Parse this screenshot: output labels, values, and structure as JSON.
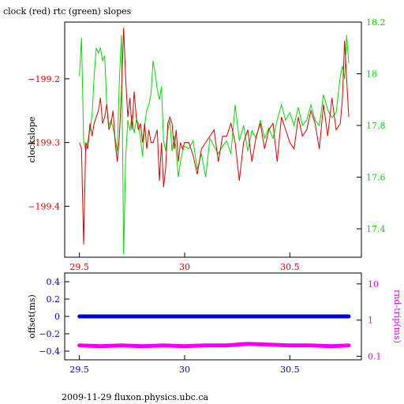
{
  "page": {
    "footer": "2009-11-29 fluxon.physics.ubc.ca"
  },
  "colors": {
    "clock": "#dd0000",
    "rtc": "#00dd00",
    "offset": "#0000cc",
    "rndtrip": "#ee00ee",
    "axis_black": "#000000"
  },
  "chart_data": [
    {
      "type": "line",
      "title": "clock (red) rtc (green) slopes",
      "xlabel": "",
      "ylabel_left": "clockslope",
      "ylabel_right": "",
      "xlim": [
        29.43,
        30.84
      ],
      "ylim_left": [
        -199.48,
        -199.111
      ],
      "ylim_right": [
        17.29,
        18.2
      ],
      "x_ticks": [
        29.5,
        30,
        30.5
      ],
      "x_tick_labels": [
        "29.5",
        "30",
        "30.5"
      ],
      "y_left_ticks": [
        -199.2,
        -199.3,
        -199.4
      ],
      "y_left_tick_labels": [
        "-199.2",
        "-199.3",
        "-199.4"
      ],
      "y_right_ticks": [
        18.2,
        18,
        17.8,
        17.6,
        17.4
      ],
      "y_right_tick_labels": [
        "18.2",
        "18",
        "17.8",
        "17.6",
        "17.4"
      ],
      "grid": false,
      "series": [
        {
          "axis": "left",
          "color": "#dd0000",
          "x": [
            29.5,
            29.51,
            29.52,
            29.53,
            29.54,
            29.55,
            29.56,
            29.57,
            29.58,
            29.59,
            29.6,
            29.61,
            29.62,
            29.63,
            29.64,
            29.65,
            29.66,
            29.67,
            29.68,
            29.69,
            29.7,
            29.71,
            29.72,
            29.73,
            29.74,
            29.75,
            29.76,
            29.77,
            29.78,
            29.79,
            29.8,
            29.81,
            29.82,
            29.83,
            29.84,
            29.85,
            29.86,
            29.87,
            29.88,
            29.89,
            29.9,
            29.91,
            29.92,
            29.93,
            29.94,
            29.95,
            29.96,
            29.97,
            29.98,
            29.99,
            30.0,
            30.02,
            30.04,
            30.06,
            30.08,
            30.1,
            30.12,
            30.14,
            30.16,
            30.18,
            30.2,
            30.22,
            30.24,
            30.26,
            30.28,
            30.3,
            30.32,
            30.34,
            30.36,
            30.38,
            30.4,
            30.42,
            30.44,
            30.46,
            30.48,
            30.5,
            30.52,
            30.54,
            30.56,
            30.58,
            30.6,
            30.62,
            30.64,
            30.66,
            30.68,
            30.7,
            30.72,
            30.74,
            30.75,
            30.76,
            30.77,
            30.78
          ],
          "y": [
            -199.3,
            -199.31,
            -199.46,
            -199.3,
            -199.31,
            -199.27,
            -199.29,
            -199.27,
            -199.26,
            -199.25,
            -199.23,
            -199.27,
            -199.26,
            -199.24,
            -199.28,
            -199.27,
            -199.25,
            -199.3,
            -199.33,
            -199.29,
            -199.22,
            -199.12,
            -199.2,
            -199.26,
            -199.23,
            -199.28,
            -199.22,
            -199.26,
            -199.28,
            -199.27,
            -199.3,
            -199.27,
            -199.31,
            -199.28,
            -199.3,
            -199.3,
            -199.29,
            -199.28,
            -199.36,
            -199.3,
            -199.37,
            -199.34,
            -199.27,
            -199.26,
            -199.27,
            -199.31,
            -199.28,
            -199.33,
            -199.3,
            -199.31,
            -199.3,
            -199.3,
            -199.32,
            -199.35,
            -199.31,
            -199.3,
            -199.29,
            -199.28,
            -199.33,
            -199.29,
            -199.29,
            -199.27,
            -199.3,
            -199.36,
            -199.3,
            -199.28,
            -199.33,
            -199.29,
            -199.27,
            -199.31,
            -199.28,
            -199.27,
            -199.33,
            -199.26,
            -199.28,
            -199.3,
            -199.31,
            -199.26,
            -199.29,
            -199.28,
            -199.25,
            -199.27,
            -199.31,
            -199.24,
            -199.29,
            -199.23,
            -199.28,
            -199.27,
            -199.23,
            -199.14,
            -199.2,
            -199.26
          ]
        },
        {
          "axis": "right",
          "color": "#00dd00",
          "x": [
            29.5,
            29.51,
            29.52,
            29.53,
            29.54,
            29.55,
            29.56,
            29.57,
            29.58,
            29.59,
            29.6,
            29.61,
            29.62,
            29.63,
            29.64,
            29.65,
            29.66,
            29.67,
            29.68,
            29.69,
            29.7,
            29.71,
            29.72,
            29.73,
            29.74,
            29.75,
            29.76,
            29.77,
            29.78,
            29.79,
            29.8,
            29.81,
            29.82,
            29.83,
            29.84,
            29.85,
            29.86,
            29.87,
            29.88,
            29.89,
            29.9,
            29.91,
            29.92,
            29.93,
            29.94,
            29.95,
            29.96,
            29.97,
            29.98,
            29.99,
            30.0,
            30.02,
            30.04,
            30.06,
            30.08,
            30.1,
            30.12,
            30.14,
            30.16,
            30.18,
            30.2,
            30.22,
            30.24,
            30.26,
            30.28,
            30.3,
            30.32,
            30.34,
            30.36,
            30.38,
            30.4,
            30.42,
            30.44,
            30.46,
            30.48,
            30.5,
            30.52,
            30.54,
            30.56,
            30.58,
            30.6,
            30.62,
            30.64,
            30.66,
            30.68,
            30.7,
            30.72,
            30.74,
            30.75,
            30.76,
            30.77,
            30.78
          ],
          "y": [
            17.99,
            18.14,
            17.74,
            17.7,
            17.74,
            17.78,
            17.84,
            17.99,
            18.1,
            18.08,
            18.1,
            18.05,
            18.07,
            17.88,
            17.8,
            17.82,
            17.79,
            17.75,
            17.7,
            17.98,
            18.15,
            17.3,
            17.68,
            17.82,
            17.78,
            17.84,
            17.77,
            17.82,
            17.81,
            17.75,
            17.68,
            17.8,
            17.86,
            17.88,
            17.92,
            18.05,
            18.0,
            17.94,
            17.9,
            17.95,
            17.74,
            17.7,
            17.78,
            17.82,
            17.7,
            17.76,
            17.7,
            17.6,
            17.66,
            17.7,
            17.72,
            17.71,
            17.74,
            17.63,
            17.69,
            17.6,
            17.75,
            17.72,
            17.69,
            17.72,
            17.74,
            17.69,
            17.88,
            17.74,
            17.8,
            17.7,
            17.78,
            17.75,
            17.82,
            17.75,
            17.79,
            17.75,
            17.82,
            17.88,
            17.82,
            17.85,
            17.8,
            17.87,
            17.8,
            17.82,
            17.88,
            17.82,
            17.8,
            17.92,
            17.86,
            17.83,
            17.85,
            17.99,
            18.03,
            17.98,
            18.15,
            18.04
          ]
        }
      ]
    },
    {
      "type": "scatter",
      "title": "",
      "xlabel": "",
      "ylabel_left": "offset(ms)",
      "ylabel_right": "rnd-trip(ms)",
      "xlim": [
        29.43,
        30.84
      ],
      "ylim_left": [
        -0.5,
        0.5
      ],
      "y_right_scale": "log",
      "ylim_right": [
        0.08,
        20
      ],
      "x_ticks": [
        29.5,
        30,
        30.5
      ],
      "x_tick_labels": [
        "29.5",
        "30",
        "30.5"
      ],
      "y_left_ticks": [
        0.4,
        0.2,
        0,
        -0.2,
        -0.4
      ],
      "y_left_tick_labels": [
        "0.4",
        "0.2",
        "0",
        "-0.2",
        "-0.4"
      ],
      "y_right_ticks": [
        10,
        1,
        0.1
      ],
      "y_right_tick_labels": [
        "10",
        "1",
        "0.1"
      ],
      "grid": false,
      "series": [
        {
          "axis": "left",
          "color": "#0000cc",
          "x": [
            29.5,
            29.6,
            29.7,
            29.8,
            29.9,
            30.0,
            30.1,
            30.2,
            30.3,
            30.4,
            30.5,
            30.6,
            30.7,
            30.78
          ],
          "y": [
            0.0,
            0.0,
            0.0,
            0.0,
            0.0,
            0.0,
            0.0,
            0.0,
            0.0,
            0.0,
            0.0,
            0.0,
            0.0,
            0.0
          ]
        },
        {
          "axis": "right",
          "color": "#ee00ee",
          "x": [
            29.5,
            29.6,
            29.7,
            29.8,
            29.9,
            30.0,
            30.1,
            30.2,
            30.3,
            30.4,
            30.5,
            30.6,
            30.7,
            30.78
          ],
          "y": [
            0.2,
            0.19,
            0.2,
            0.19,
            0.2,
            0.19,
            0.2,
            0.2,
            0.22,
            0.21,
            0.2,
            0.2,
            0.19,
            0.2
          ]
        }
      ]
    }
  ]
}
